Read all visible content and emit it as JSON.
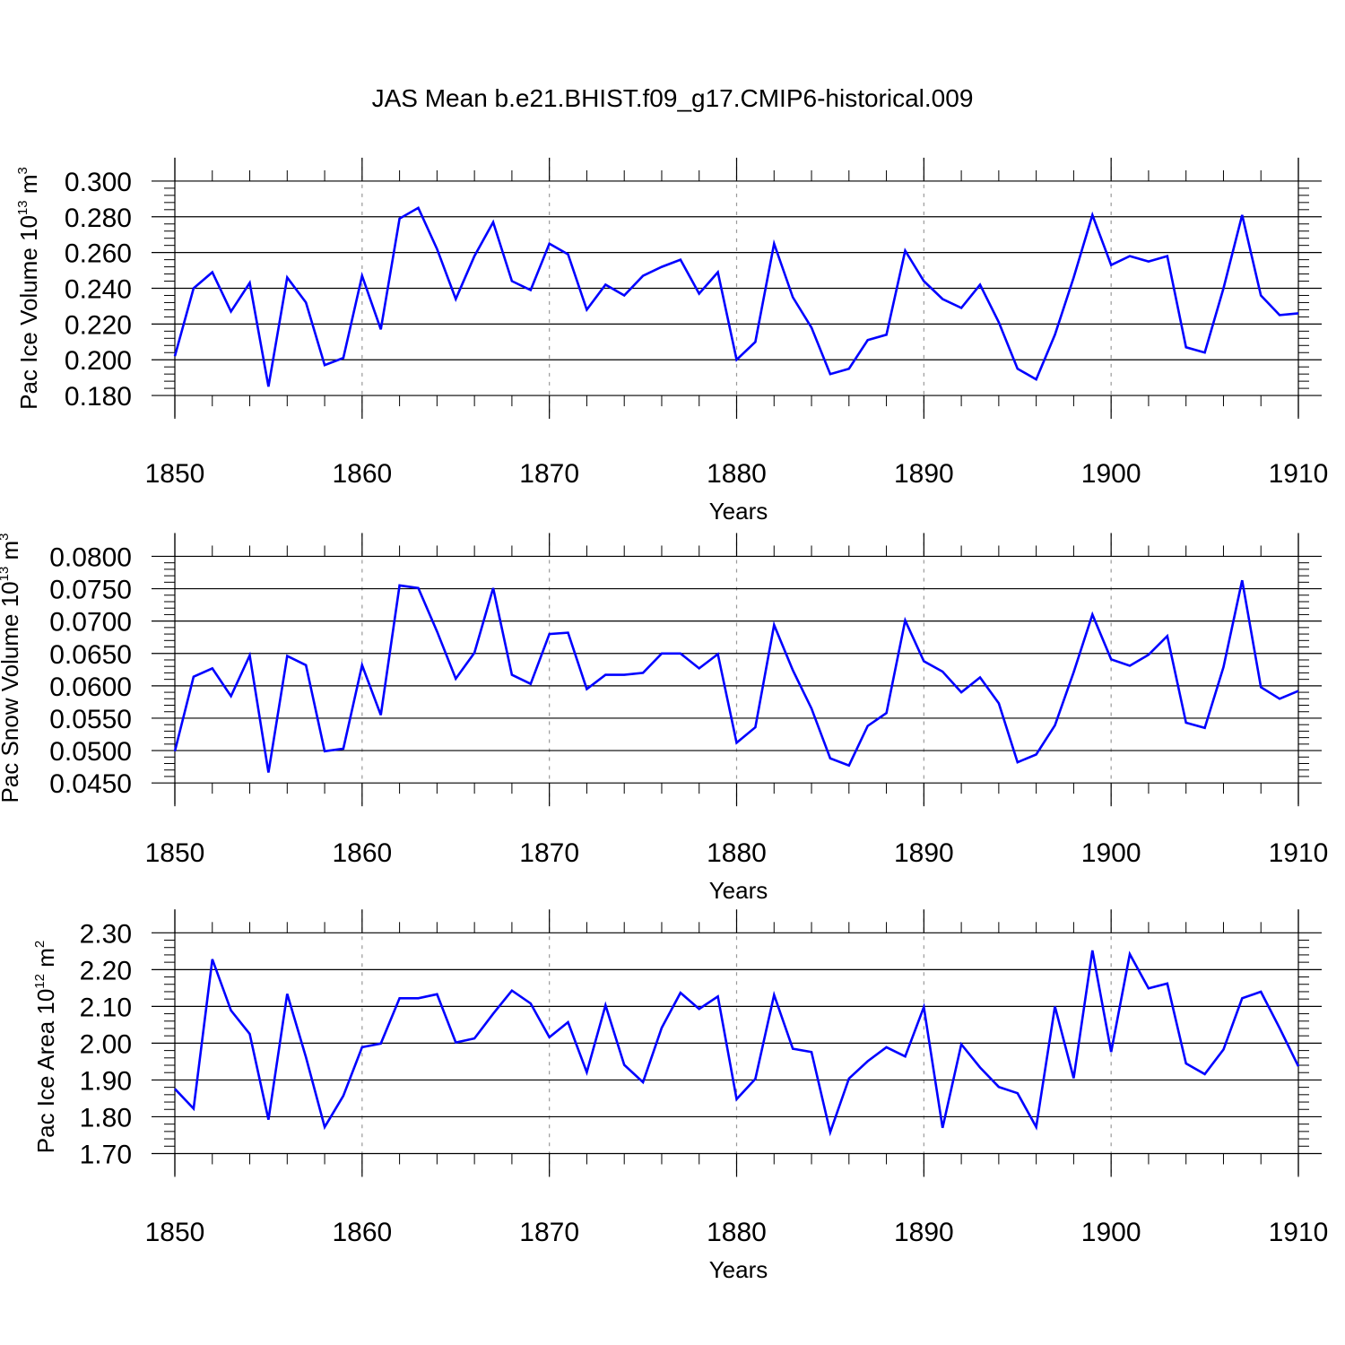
{
  "figure_title": "JAS Mean b.e21.BHIST.f09_g17.CMIP6-historical.009",
  "colors": {
    "line": "#0000ff",
    "axis": "#000000",
    "gridline": "#999999"
  },
  "chart_data": [
    {
      "type": "line",
      "name": "pac-ice-volume",
      "xlabel": "Years",
      "ylabel": {
        "text": "Pac Ice Volume 10",
        "exponent": "13",
        "unit": " m",
        "unit_exponent": "3"
      },
      "xlim": [
        1850,
        1910
      ],
      "ylim": [
        0.17,
        0.31
      ],
      "x_ticks": [
        "1850",
        "1860",
        "1870",
        "1880",
        "1890",
        "1900",
        "1910"
      ],
      "y_ticks": [
        "0.180",
        "0.200",
        "0.220",
        "0.240",
        "0.260",
        "0.280",
        "0.300"
      ],
      "x": [
        1850,
        1851,
        1852,
        1853,
        1854,
        1855,
        1856,
        1857,
        1858,
        1859,
        1860,
        1861,
        1862,
        1863,
        1864,
        1865,
        1866,
        1867,
        1868,
        1869,
        1870,
        1871,
        1872,
        1873,
        1874,
        1875,
        1876,
        1877,
        1878,
        1879,
        1880,
        1881,
        1882,
        1883,
        1884,
        1885,
        1886,
        1887,
        1888,
        1889,
        1890,
        1891,
        1892,
        1893,
        1894,
        1895,
        1896,
        1897,
        1898,
        1899,
        1900,
        1901,
        1902,
        1903,
        1904,
        1905,
        1906,
        1907,
        1908,
        1909,
        1910
      ],
      "values": [
        0.202,
        0.24,
        0.249,
        0.227,
        0.243,
        0.185,
        0.246,
        0.232,
        0.197,
        0.201,
        0.247,
        0.217,
        0.279,
        0.285,
        0.262,
        0.234,
        0.258,
        0.277,
        0.244,
        0.239,
        0.265,
        0.259,
        0.228,
        0.242,
        0.236,
        0.247,
        0.252,
        0.256,
        0.237,
        0.249,
        0.2,
        0.21,
        0.265,
        0.235,
        0.218,
        0.192,
        0.195,
        0.211,
        0.214,
        0.261,
        0.244,
        0.234,
        0.229,
        0.242,
        0.221,
        0.195,
        0.189,
        0.214,
        0.246,
        0.281,
        0.253,
        0.258,
        0.255,
        0.258,
        0.207,
        0.204,
        0.24,
        0.281,
        0.236,
        0.225,
        0.226
      ]
    },
    {
      "type": "line",
      "name": "pac-snow-volume",
      "xlabel": "Years",
      "ylabel": {
        "text": "Pac Snow Volume 10",
        "exponent": "13",
        "unit": " m",
        "unit_exponent": "3"
      },
      "xlim": [
        1850,
        1910
      ],
      "ylim": [
        0.0435,
        0.082
      ],
      "x_ticks": [
        "1850",
        "1860",
        "1870",
        "1880",
        "1890",
        "1900",
        "1910"
      ],
      "y_ticks": [
        "0.0450",
        "0.0500",
        "0.0550",
        "0.0600",
        "0.0650",
        "0.0700",
        "0.0750",
        "0.0800"
      ],
      "x": [
        1850,
        1851,
        1852,
        1853,
        1854,
        1855,
        1856,
        1857,
        1858,
        1859,
        1860,
        1861,
        1862,
        1863,
        1864,
        1865,
        1866,
        1867,
        1868,
        1869,
        1870,
        1871,
        1872,
        1873,
        1874,
        1875,
        1876,
        1877,
        1878,
        1879,
        1880,
        1881,
        1882,
        1883,
        1884,
        1885,
        1886,
        1887,
        1888,
        1889,
        1890,
        1891,
        1892,
        1893,
        1894,
        1895,
        1896,
        1897,
        1898,
        1899,
        1900,
        1901,
        1902,
        1903,
        1904,
        1905,
        1906,
        1907,
        1908,
        1909,
        1910
      ],
      "values": [
        0.0499,
        0.0614,
        0.0627,
        0.0584,
        0.0647,
        0.0466,
        0.0646,
        0.0632,
        0.0499,
        0.0503,
        0.0632,
        0.0555,
        0.0755,
        0.0751,
        0.0684,
        0.0611,
        0.0651,
        0.0751,
        0.0617,
        0.0603,
        0.068,
        0.0682,
        0.0595,
        0.0617,
        0.0617,
        0.062,
        0.065,
        0.065,
        0.0627,
        0.0649,
        0.0512,
        0.0536,
        0.0694,
        0.0624,
        0.0565,
        0.0488,
        0.0477,
        0.0538,
        0.0558,
        0.0701,
        0.0638,
        0.0622,
        0.059,
        0.0613,
        0.0573,
        0.0482,
        0.0494,
        0.0539,
        0.0621,
        0.071,
        0.0641,
        0.0631,
        0.0648,
        0.0677,
        0.0543,
        0.0535,
        0.0629,
        0.0763,
        0.0598,
        0.058,
        0.0592
      ]
    },
    {
      "type": "line",
      "name": "pac-ice-area",
      "xlabel": "Years",
      "ylabel": {
        "text": "Pac Ice Area 10",
        "exponent": "12",
        "unit": " m",
        "unit_exponent": "2"
      },
      "xlim": [
        1850,
        1910
      ],
      "ylim": [
        1.65,
        2.33
      ],
      "x_ticks": [
        "1850",
        "1860",
        "1870",
        "1880",
        "1890",
        "1900",
        "1910"
      ],
      "y_ticks": [
        "1.70",
        "1.80",
        "1.90",
        "2.00",
        "2.10",
        "2.20",
        "2.30"
      ],
      "x": [
        1850,
        1851,
        1852,
        1853,
        1854,
        1855,
        1856,
        1857,
        1858,
        1859,
        1860,
        1861,
        1862,
        1863,
        1864,
        1865,
        1866,
        1867,
        1868,
        1869,
        1870,
        1871,
        1872,
        1873,
        1874,
        1875,
        1876,
        1877,
        1878,
        1879,
        1880,
        1881,
        1882,
        1883,
        1884,
        1885,
        1886,
        1887,
        1888,
        1889,
        1890,
        1891,
        1892,
        1893,
        1894,
        1895,
        1896,
        1897,
        1898,
        1899,
        1900,
        1901,
        1902,
        1903,
        1904,
        1905,
        1906,
        1907,
        1908,
        1909,
        1910
      ],
      "values": [
        1.876,
        1.822,
        2.228,
        2.089,
        2.025,
        1.792,
        2.134,
        1.962,
        1.772,
        1.857,
        1.989,
        1.999,
        2.122,
        2.122,
        2.133,
        2.002,
        2.013,
        2.08,
        2.143,
        2.108,
        2.016,
        2.057,
        1.921,
        2.103,
        1.941,
        1.894,
        2.042,
        2.137,
        2.093,
        2.127,
        1.848,
        1.903,
        2.131,
        1.985,
        1.976,
        1.758,
        1.904,
        1.951,
        1.989,
        1.964,
        2.098,
        1.77,
        1.997,
        1.934,
        1.881,
        1.864,
        1.772,
        2.1,
        1.905,
        2.252,
        1.976,
        2.242,
        2.149,
        2.162,
        1.945,
        1.916,
        1.983,
        2.122,
        2.14,
        2.041,
        1.937
      ]
    }
  ]
}
